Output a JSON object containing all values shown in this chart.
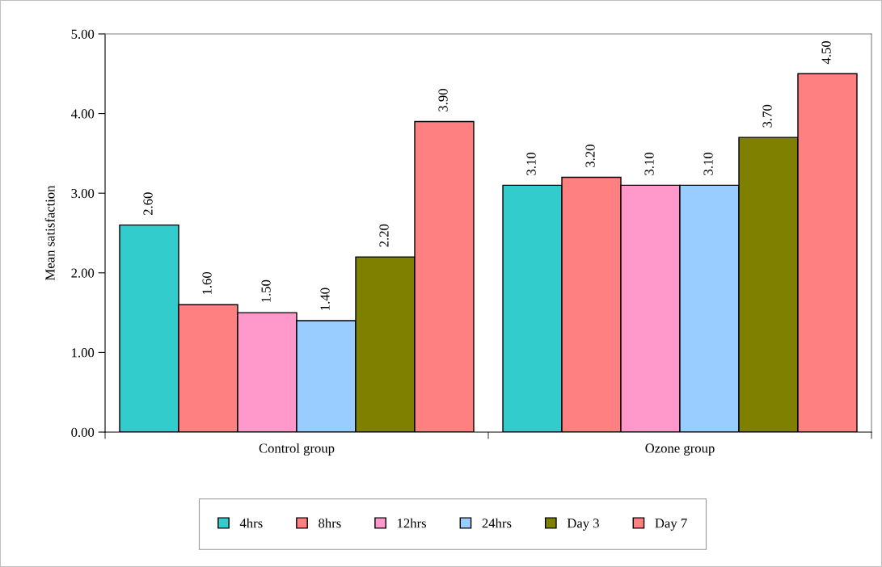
{
  "chart_data": {
    "type": "bar",
    "ylabel": "Mean satisfaction",
    "categories": [
      "Control group",
      "Ozone group"
    ],
    "series": [
      {
        "name": "4hrs",
        "color": "#33cccc",
        "values": [
          2.6,
          3.1
        ],
        "value_labels": [
          "2.60",
          "3.10"
        ]
      },
      {
        "name": "8hrs",
        "color": "#ff8080",
        "values": [
          1.6,
          3.2
        ],
        "value_labels": [
          "1.60",
          "3.20"
        ]
      },
      {
        "name": "12hrs",
        "color": "#ff99cc",
        "values": [
          1.5,
          3.1
        ],
        "value_labels": [
          "1.50",
          "3.10"
        ]
      },
      {
        "name": "24hrs",
        "color": "#99ccff",
        "values": [
          1.4,
          3.1
        ],
        "value_labels": [
          "1.40",
          "3.10"
        ]
      },
      {
        "name": "Day 3",
        "color": "#808000",
        "values": [
          2.2,
          3.7
        ],
        "value_labels": [
          "2.20",
          "3.70"
        ]
      },
      {
        "name": "Day 7",
        "color": "#ff8080",
        "values": [
          3.9,
          4.5
        ],
        "value_labels": [
          "3.90",
          "4.50"
        ]
      }
    ],
    "ylim": [
      0,
      5
    ],
    "yticks": [
      {
        "value": 0,
        "label": "0.00"
      },
      {
        "value": 1,
        "label": "1.00"
      },
      {
        "value": 2,
        "label": "2.00"
      },
      {
        "value": 3,
        "label": "3.00"
      },
      {
        "value": 4,
        "label": "4.00"
      },
      {
        "value": 5,
        "label": "5.00"
      }
    ],
    "grid": false,
    "legend": "bottom"
  }
}
